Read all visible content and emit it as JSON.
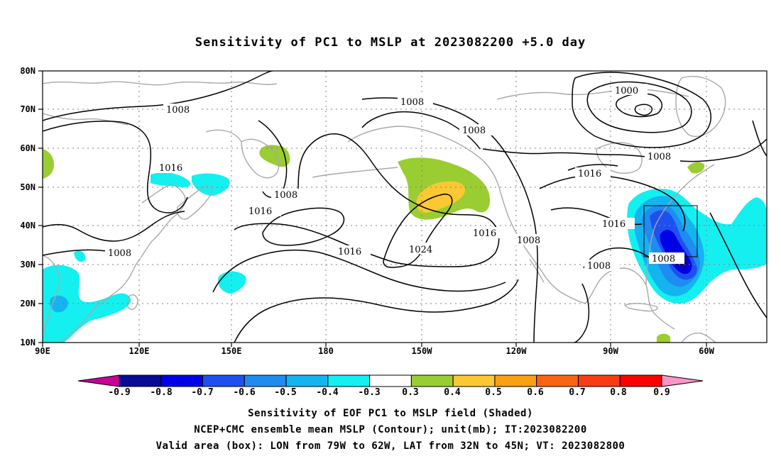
{
  "title": "Sensitivity of PC1 to MSLP at 2023082200 +5.0 day",
  "map": {
    "lat_labels": [
      "80N",
      "70N",
      "60N",
      "50N",
      "40N",
      "30N",
      "20N",
      "10N"
    ],
    "lon_labels": [
      "90E",
      "120E",
      "150E",
      "180",
      "150W",
      "120W",
      "90W",
      "60W"
    ],
    "contour_labels": [
      "1000",
      "1008",
      "1008",
      "1008",
      "1008",
      "1008",
      "1008",
      "1008",
      "1016",
      "1016",
      "1016",
      "1016",
      "1016",
      "1024"
    ],
    "valid_box": {
      "lon_min": "79W",
      "lon_max": "62W",
      "lat_min": "32N",
      "lat_max": "45N"
    }
  },
  "colorbar": {
    "labels": [
      "-0.9",
      "-0.8",
      "-0.7",
      "-0.6",
      "-0.5",
      "-0.4",
      "-0.3",
      "0.3",
      "0.4",
      "0.5",
      "0.6",
      "0.7",
      "0.8",
      "0.9"
    ],
    "colors": [
      "#0a0a96",
      "#0000e6",
      "#1e50f0",
      "#1e8cf0",
      "#14b4f0",
      "#14f0f0",
      "#ffffff",
      "#9acd32",
      "#fac832",
      "#faa014",
      "#fa6414",
      "#fa3c14",
      "#fa0000"
    ],
    "low_end_color": "#c80096",
    "high_end_color": "#fa96c8"
  },
  "captions": [
    "Sensitivity of EOF PC1 to MSLP field (Shaded)",
    "NCEP+CMC ensemble mean MSLP (Contour); unit(mb); IT:2023082200",
    "Valid area (box): LON from 79W to 62W, LAT from 32N to 45N; VT: 2023082800"
  ]
}
